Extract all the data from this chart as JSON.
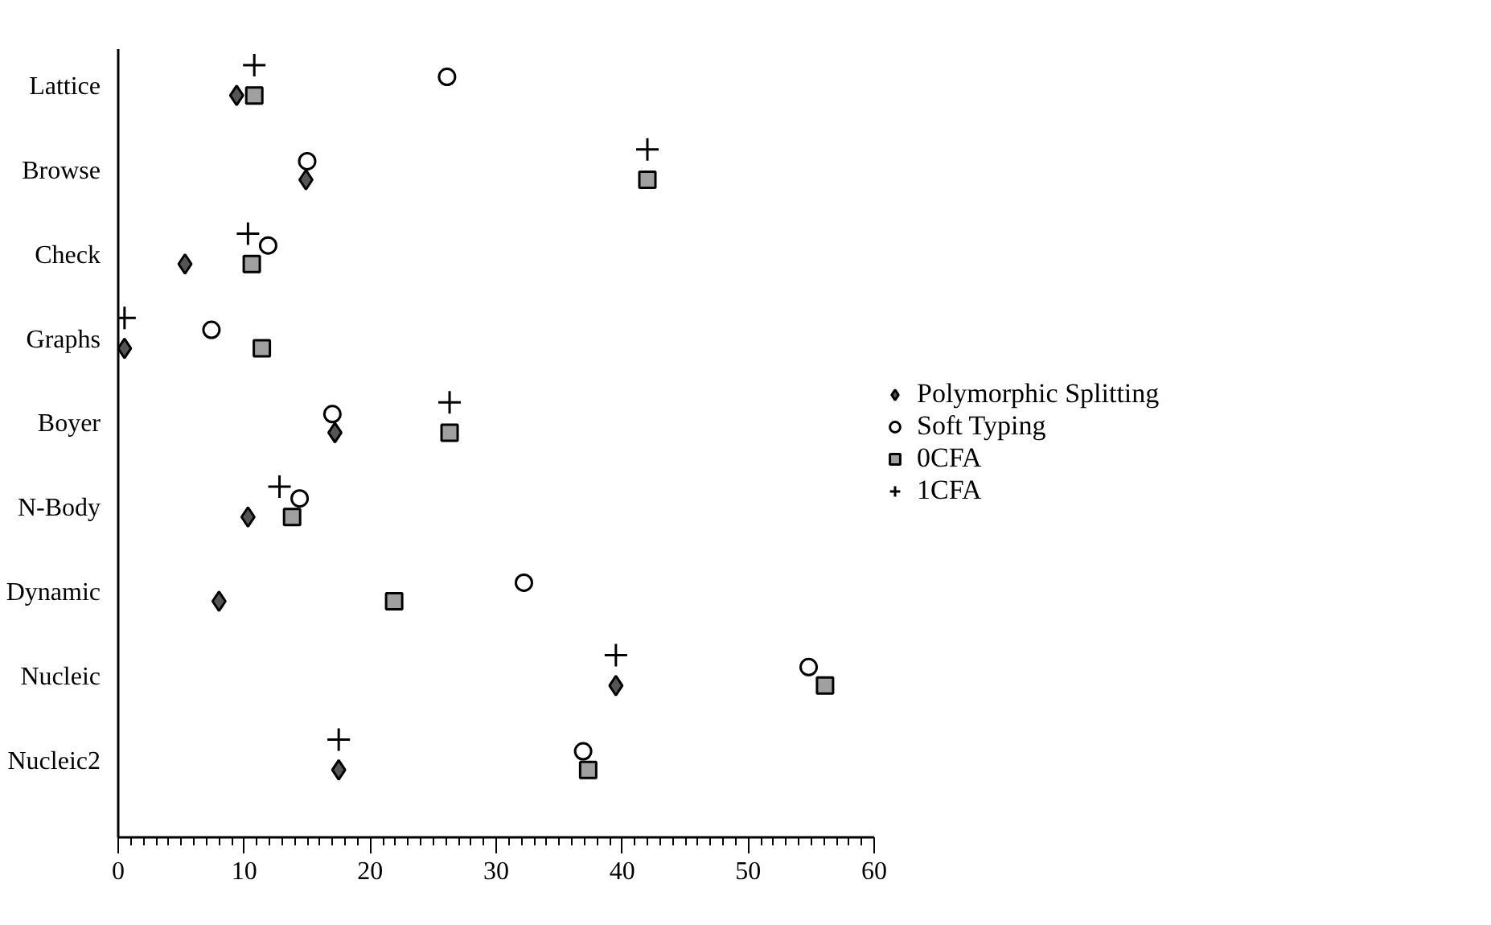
{
  "chart_data": {
    "type": "scatter",
    "orientation": "horizontal",
    "categories": [
      "Lattice",
      "Browse",
      "Check",
      "Graphs",
      "Boyer",
      "N-Body",
      "Dynamic",
      "Nucleic",
      "Nucleic2"
    ],
    "series": [
      {
        "name": "Polymorphic Splitting",
        "color": "#555555",
        "marker": "diamond",
        "values": [
          9.4,
          14.9,
          5.3,
          0.5,
          17.2,
          10.3,
          8.0,
          39.5,
          17.5
        ]
      },
      {
        "name": "Soft Typing",
        "color": "#ffffff",
        "marker": "circle",
        "values": [
          26.1,
          15.0,
          11.9,
          7.4,
          17.0,
          14.4,
          32.2,
          54.8,
          36.9
        ]
      },
      {
        "name": "0CFA",
        "color": "#a0a0a0",
        "marker": "square",
        "values": [
          10.8,
          42.0,
          10.6,
          11.4,
          26.3,
          13.8,
          21.9,
          56.1,
          37.3
        ]
      },
      {
        "name": "1CFA",
        "color": "#000000",
        "marker": "cross",
        "values": [
          10.8,
          42.0,
          10.3,
          0.5,
          26.3,
          12.8,
          null,
          39.5,
          17.5
        ]
      }
    ],
    "xlim": [
      0,
      60
    ],
    "xticks": [
      0,
      10,
      20,
      30,
      40,
      50,
      60
    ],
    "grid": false,
    "legend": "right"
  }
}
